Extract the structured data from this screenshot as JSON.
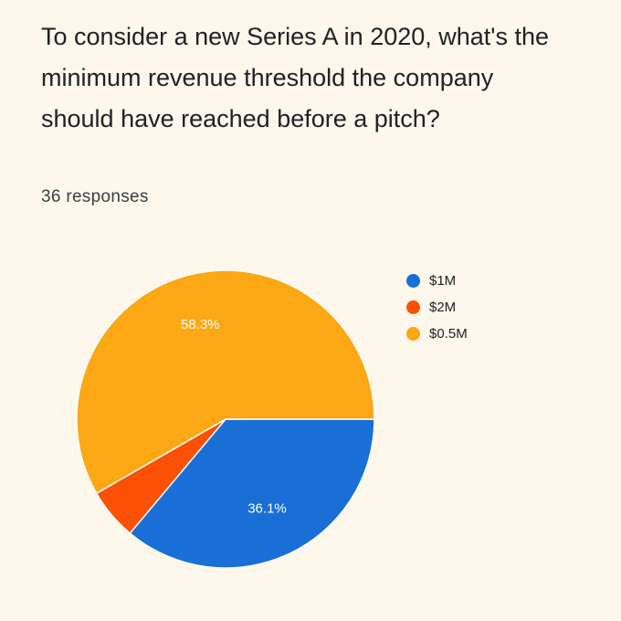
{
  "question": "To consider a new Series A in 2020, what's the minimum revenue threshold the company should have reached before a pitch?",
  "responses": "36 responses",
  "chart_data": {
    "type": "pie",
    "title": "To consider a new Series A in 2020, what's the minimum revenue threshold the company should have reached before a pitch?",
    "categories": [
      "$1M",
      "$2M",
      "$0.5M"
    ],
    "values": [
      36.1,
      5.6,
      58.3
    ],
    "value_labels": [
      "36.1%",
      "",
      "58.3%"
    ],
    "colors": [
      "#1a6fd6",
      "#fc5104",
      "#fca714"
    ],
    "legend_position": "top-right"
  }
}
